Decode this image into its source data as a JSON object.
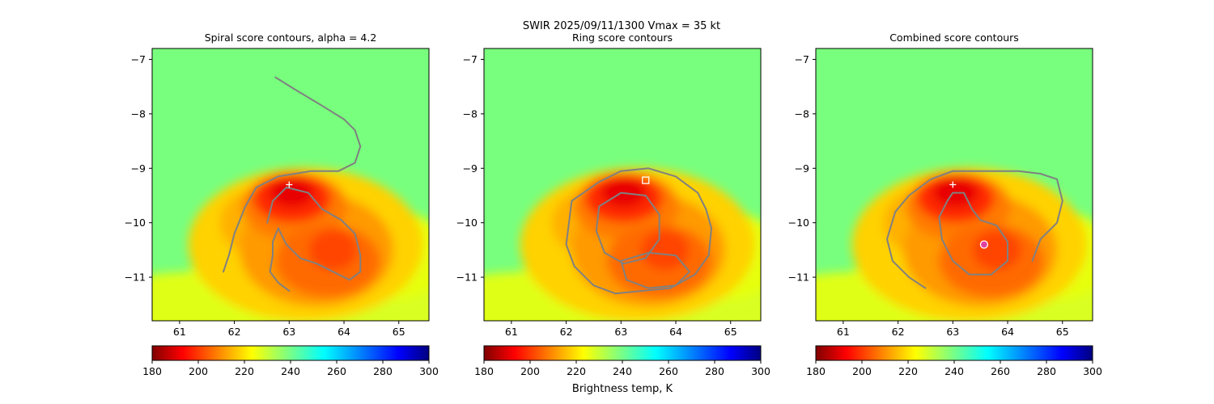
{
  "figure": {
    "suptitle_line1": "SWIR  2025/09/11/1300    Vmax = 35 kt",
    "colorbar_label": "Brightness temp, K"
  },
  "chart_data": [
    {
      "type": "heatmap",
      "title": "Spiral score contours, alpha =  4.2",
      "xlim": [
        60.5,
        65.55
      ],
      "ylim": [
        -11.8,
        -6.8
      ],
      "xticks": [
        61,
        62,
        63,
        64,
        65
      ],
      "yticks": [
        -7,
        -8,
        -9,
        -10,
        -11
      ],
      "colormap": "jet",
      "color_range": [
        180,
        300
      ],
      "colorbar_ticks": [
        180,
        200,
        220,
        240,
        260,
        280,
        300
      ],
      "markers": [
        {
          "symbol": "plus",
          "x": 63.0,
          "y": -9.3,
          "color": "#ffffff"
        }
      ],
      "contours": [
        [
          [
            62.75,
            -7.33
          ],
          [
            63.1,
            -7.55
          ],
          [
            63.6,
            -7.85
          ],
          [
            64.0,
            -8.1
          ],
          [
            64.2,
            -8.3
          ],
          [
            64.3,
            -8.6
          ],
          [
            64.2,
            -8.9
          ],
          [
            63.9,
            -9.05
          ],
          [
            63.4,
            -9.05
          ],
          [
            62.8,
            -9.15
          ],
          [
            62.4,
            -9.35
          ],
          [
            62.2,
            -9.7
          ],
          [
            62.0,
            -10.2
          ],
          [
            61.9,
            -10.6
          ],
          [
            61.8,
            -10.9
          ]
        ],
        [
          [
            62.6,
            -10.0
          ],
          [
            62.7,
            -9.6
          ],
          [
            62.95,
            -9.35
          ],
          [
            63.35,
            -9.45
          ],
          [
            63.6,
            -9.75
          ],
          [
            63.95,
            -9.95
          ],
          [
            64.2,
            -10.2
          ],
          [
            64.3,
            -10.6
          ],
          [
            64.3,
            -10.9
          ],
          [
            64.1,
            -11.05
          ],
          [
            63.8,
            -10.9
          ],
          [
            63.5,
            -10.75
          ],
          [
            63.2,
            -10.65
          ],
          [
            62.95,
            -10.4
          ],
          [
            62.8,
            -10.1
          ],
          [
            62.7,
            -10.35
          ],
          [
            62.7,
            -10.6
          ],
          [
            62.65,
            -10.9
          ],
          [
            62.8,
            -11.1
          ],
          [
            63.0,
            -11.25
          ]
        ]
      ]
    },
    {
      "type": "heatmap",
      "title": "Ring score contours",
      "xlim": [
        60.5,
        65.55
      ],
      "ylim": [
        -11.8,
        -6.8
      ],
      "xticks": [
        61,
        62,
        63,
        64,
        65
      ],
      "yticks": [
        -7,
        -8,
        -9,
        -10,
        -11
      ],
      "colormap": "jet",
      "color_range": [
        180,
        300
      ],
      "colorbar_ticks": [
        180,
        200,
        220,
        240,
        260,
        280,
        300
      ],
      "markers": [
        {
          "symbol": "square",
          "x": 63.45,
          "y": -9.22,
          "color": "#ffffff"
        }
      ],
      "contours": [
        [
          [
            62.1,
            -9.6
          ],
          [
            62.6,
            -9.25
          ],
          [
            63.0,
            -9.05
          ],
          [
            63.5,
            -9.0
          ],
          [
            64.0,
            -9.15
          ],
          [
            64.4,
            -9.45
          ],
          [
            64.55,
            -9.75
          ],
          [
            64.65,
            -10.1
          ],
          [
            64.6,
            -10.6
          ],
          [
            64.35,
            -10.95
          ],
          [
            63.9,
            -11.2
          ],
          [
            63.4,
            -11.25
          ],
          [
            62.9,
            -11.3
          ],
          [
            62.5,
            -11.15
          ],
          [
            62.15,
            -10.8
          ],
          [
            62.0,
            -10.4
          ],
          [
            62.05,
            -10.0
          ],
          [
            62.1,
            -9.6
          ]
        ],
        [
          [
            62.6,
            -9.7
          ],
          [
            63.0,
            -9.45
          ],
          [
            63.45,
            -9.5
          ],
          [
            63.7,
            -9.85
          ],
          [
            63.7,
            -10.3
          ],
          [
            63.45,
            -10.65
          ],
          [
            63.05,
            -10.75
          ],
          [
            62.7,
            -10.55
          ],
          [
            62.55,
            -10.15
          ],
          [
            62.6,
            -9.7
          ]
        ],
        [
          [
            63.0,
            -10.7
          ],
          [
            63.5,
            -10.55
          ],
          [
            64.0,
            -10.6
          ],
          [
            64.25,
            -10.9
          ],
          [
            64.0,
            -11.15
          ],
          [
            63.5,
            -11.2
          ],
          [
            63.1,
            -11.05
          ],
          [
            63.0,
            -10.7
          ]
        ]
      ]
    },
    {
      "type": "heatmap",
      "title": "Combined score contours",
      "xlim": [
        60.5,
        65.55
      ],
      "ylim": [
        -11.8,
        -6.8
      ],
      "xticks": [
        61,
        62,
        63,
        64,
        65
      ],
      "yticks": [
        -7,
        -8,
        -9,
        -10,
        -11
      ],
      "colormap": "jet",
      "color_range": [
        180,
        300
      ],
      "colorbar_ticks": [
        180,
        200,
        220,
        240,
        260,
        280,
        300
      ],
      "markers": [
        {
          "symbol": "plus",
          "x": 63.0,
          "y": -9.3,
          "color": "#ffffff"
        },
        {
          "symbol": "circle",
          "x": 63.57,
          "y": -10.4,
          "color": "#e040a0"
        }
      ],
      "contours": [
        [
          [
            62.5,
            -11.2
          ],
          [
            62.2,
            -11.0
          ],
          [
            61.9,
            -10.7
          ],
          [
            61.8,
            -10.3
          ],
          [
            61.95,
            -9.8
          ],
          [
            62.2,
            -9.5
          ],
          [
            62.6,
            -9.2
          ],
          [
            63.0,
            -9.05
          ],
          [
            63.6,
            -9.05
          ],
          [
            64.2,
            -9.05
          ],
          [
            64.6,
            -9.1
          ],
          [
            64.9,
            -9.2
          ],
          [
            65.0,
            -9.6
          ],
          [
            64.9,
            -10.0
          ],
          [
            64.6,
            -10.3
          ],
          [
            64.45,
            -10.7
          ]
        ],
        [
          [
            62.9,
            -9.6
          ],
          [
            62.75,
            -9.9
          ],
          [
            62.8,
            -10.3
          ],
          [
            63.0,
            -10.7
          ],
          [
            63.3,
            -10.95
          ],
          [
            63.7,
            -10.95
          ],
          [
            64.0,
            -10.7
          ],
          [
            64.0,
            -10.35
          ],
          [
            63.8,
            -10.05
          ],
          [
            63.5,
            -9.95
          ],
          [
            63.35,
            -9.75
          ],
          [
            63.2,
            -9.45
          ],
          [
            63.0,
            -9.45
          ],
          [
            62.9,
            -9.6
          ]
        ]
      ]
    }
  ]
}
